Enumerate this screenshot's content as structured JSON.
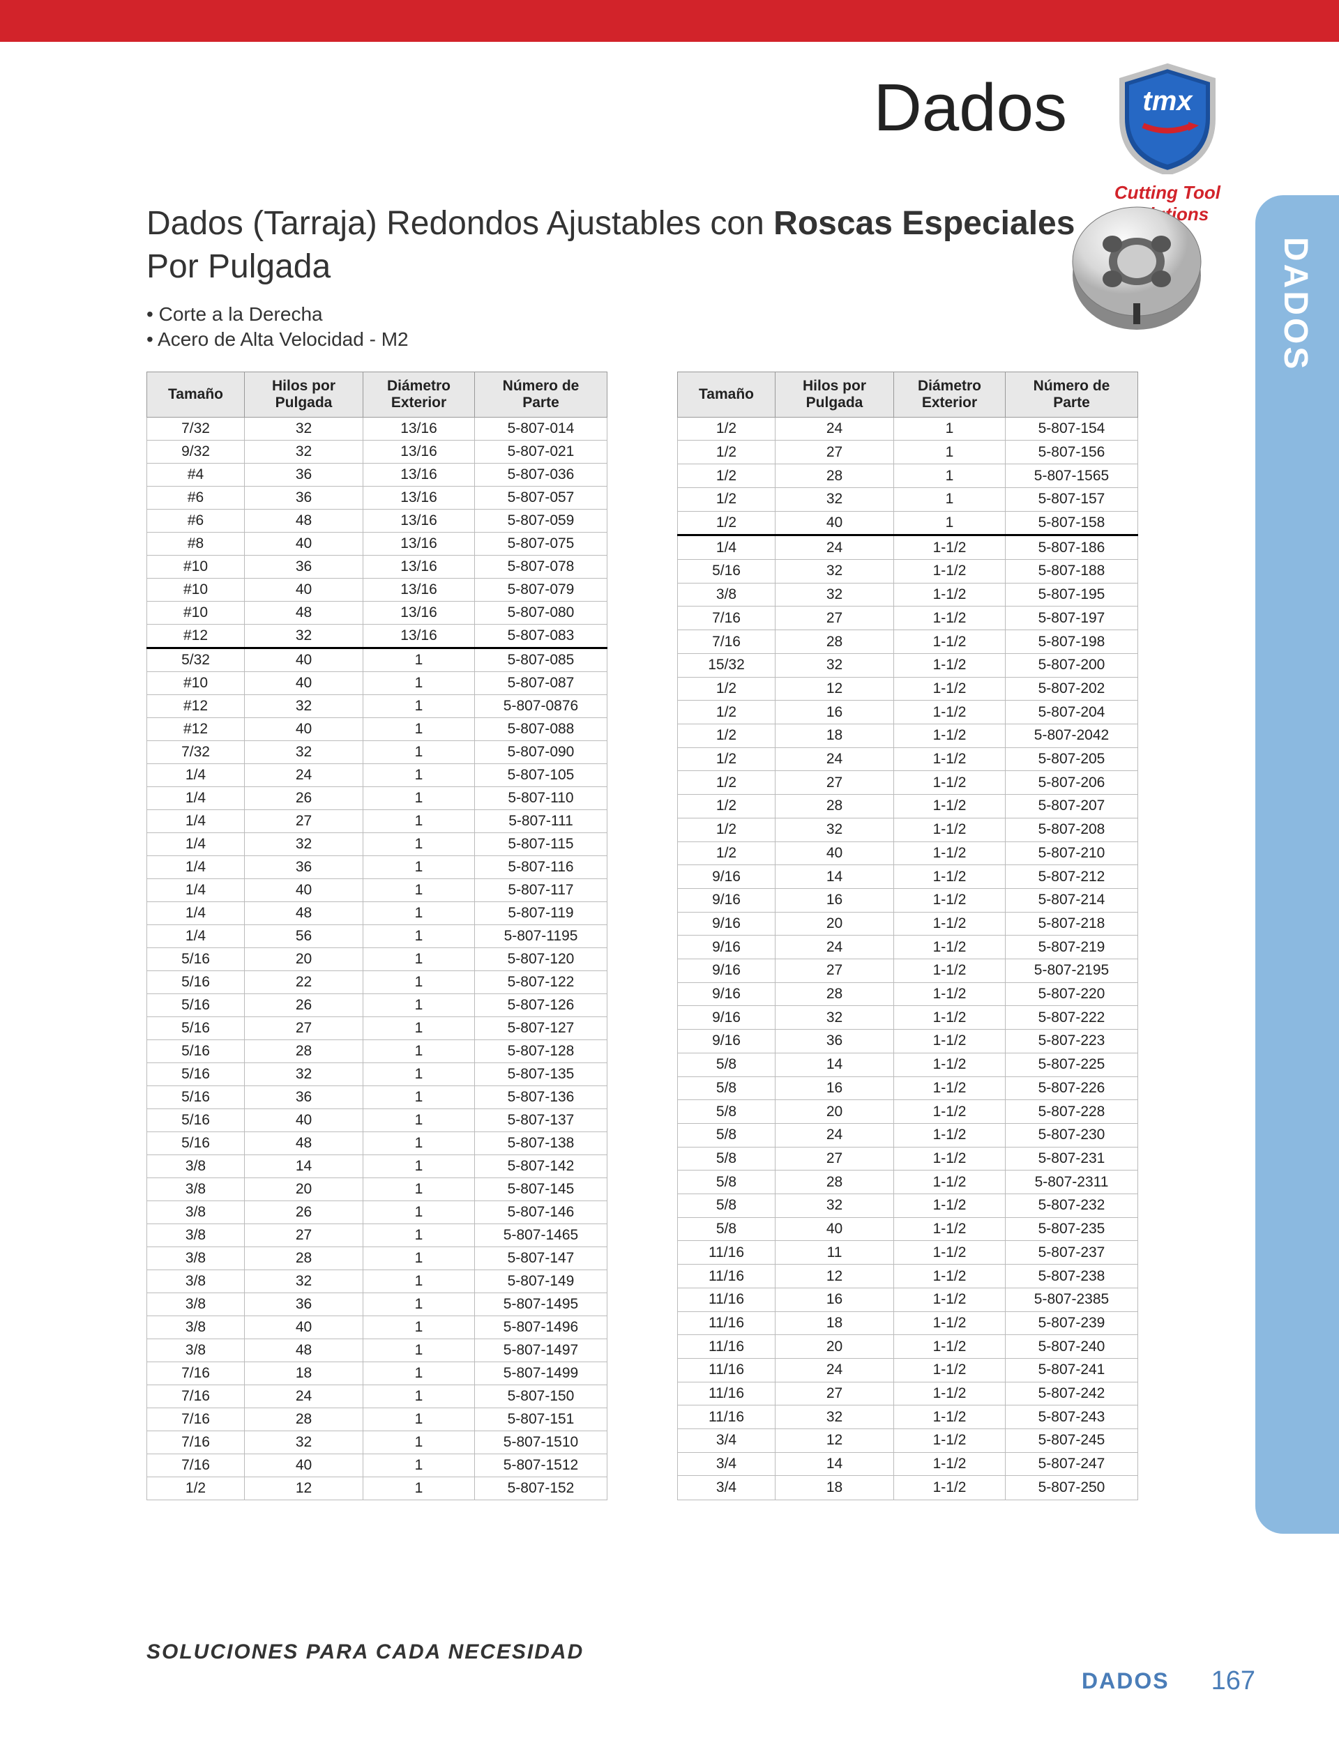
{
  "header": {
    "title": "Dados",
    "logo_tagline_1": "Cutting Tool",
    "logo_tagline_2": "Solutions",
    "logo_text": "tmx"
  },
  "sidetab": "DADOS",
  "subtitle_plain": "Dados (Tarraja) Redondos Ajustables con ",
  "subtitle_bold": "Roscas Especiales",
  "subtitle_line2": "Por Pulgada",
  "bullets": [
    "Corte a la Derecha",
    "Acero de Alta Velocidad - M2"
  ],
  "columns": [
    "Tamaño",
    "Hilos por Pulgada",
    "Diámetro Exterior",
    "Número de Parte"
  ],
  "col_widths": [
    "col0",
    "col1",
    "col2",
    "col3"
  ],
  "table_left": {
    "rows": [
      [
        "7/32",
        "32",
        "13/16",
        "5-807-014"
      ],
      [
        "9/32",
        "32",
        "13/16",
        "5-807-021"
      ],
      [
        "#4",
        "36",
        "13/16",
        "5-807-036"
      ],
      [
        "#6",
        "36",
        "13/16",
        "5-807-057"
      ],
      [
        "#6",
        "48",
        "13/16",
        "5-807-059"
      ],
      [
        "#8",
        "40",
        "13/16",
        "5-807-075"
      ],
      [
        "#10",
        "36",
        "13/16",
        "5-807-078"
      ],
      [
        "#10",
        "40",
        "13/16",
        "5-807-079"
      ],
      [
        "#10",
        "48",
        "13/16",
        "5-807-080"
      ],
      [
        "#12",
        "32",
        "13/16",
        "5-807-083"
      ]
    ],
    "rows2": [
      [
        "5/32",
        "40",
        "1",
        "5-807-085"
      ],
      [
        "#10",
        "40",
        "1",
        "5-807-087"
      ],
      [
        "#12",
        "32",
        "1",
        "5-807-0876"
      ],
      [
        "#12",
        "40",
        "1",
        "5-807-088"
      ],
      [
        "7/32",
        "32",
        "1",
        "5-807-090"
      ],
      [
        "1/4",
        "24",
        "1",
        "5-807-105"
      ],
      [
        "1/4",
        "26",
        "1",
        "5-807-110"
      ],
      [
        "1/4",
        "27",
        "1",
        "5-807-111"
      ],
      [
        "1/4",
        "32",
        "1",
        "5-807-115"
      ],
      [
        "1/4",
        "36",
        "1",
        "5-807-116"
      ],
      [
        "1/4",
        "40",
        "1",
        "5-807-117"
      ],
      [
        "1/4",
        "48",
        "1",
        "5-807-119"
      ],
      [
        "1/4",
        "56",
        "1",
        "5-807-1195"
      ],
      [
        "5/16",
        "20",
        "1",
        "5-807-120"
      ],
      [
        "5/16",
        "22",
        "1",
        "5-807-122"
      ],
      [
        "5/16",
        "26",
        "1",
        "5-807-126"
      ],
      [
        "5/16",
        "27",
        "1",
        "5-807-127"
      ],
      [
        "5/16",
        "28",
        "1",
        "5-807-128"
      ],
      [
        "5/16",
        "32",
        "1",
        "5-807-135"
      ],
      [
        "5/16",
        "36",
        "1",
        "5-807-136"
      ],
      [
        "5/16",
        "40",
        "1",
        "5-807-137"
      ],
      [
        "5/16",
        "48",
        "1",
        "5-807-138"
      ],
      [
        "3/8",
        "14",
        "1",
        "5-807-142"
      ],
      [
        "3/8",
        "20",
        "1",
        "5-807-145"
      ],
      [
        "3/8",
        "26",
        "1",
        "5-807-146"
      ],
      [
        "3/8",
        "27",
        "1",
        "5-807-1465"
      ],
      [
        "3/8",
        "28",
        "1",
        "5-807-147"
      ],
      [
        "3/8",
        "32",
        "1",
        "5-807-149"
      ],
      [
        "3/8",
        "36",
        "1",
        "5-807-1495"
      ],
      [
        "3/8",
        "40",
        "1",
        "5-807-1496"
      ],
      [
        "3/8",
        "48",
        "1",
        "5-807-1497"
      ],
      [
        "7/16",
        "18",
        "1",
        "5-807-1499"
      ],
      [
        "7/16",
        "24",
        "1",
        "5-807-150"
      ],
      [
        "7/16",
        "28",
        "1",
        "5-807-151"
      ],
      [
        "7/16",
        "32",
        "1",
        "5-807-1510"
      ],
      [
        "7/16",
        "40",
        "1",
        "5-807-1512"
      ],
      [
        "1/2",
        "12",
        "1",
        "5-807-152"
      ]
    ]
  },
  "table_right": {
    "rows": [
      [
        "1/2",
        "24",
        "1",
        "5-807-154"
      ],
      [
        "1/2",
        "27",
        "1",
        "5-807-156"
      ],
      [
        "1/2",
        "28",
        "1",
        "5-807-1565"
      ],
      [
        "1/2",
        "32",
        "1",
        "5-807-157"
      ],
      [
        "1/2",
        "40",
        "1",
        "5-807-158"
      ]
    ],
    "rows2": [
      [
        "1/4",
        "24",
        "1-1/2",
        "5-807-186"
      ],
      [
        "5/16",
        "32",
        "1-1/2",
        "5-807-188"
      ],
      [
        "3/8",
        "32",
        "1-1/2",
        "5-807-195"
      ],
      [
        "7/16",
        "27",
        "1-1/2",
        "5-807-197"
      ],
      [
        "7/16",
        "28",
        "1-1/2",
        "5-807-198"
      ],
      [
        "15/32",
        "32",
        "1-1/2",
        "5-807-200"
      ],
      [
        "1/2",
        "12",
        "1-1/2",
        "5-807-202"
      ],
      [
        "1/2",
        "16",
        "1-1/2",
        "5-807-204"
      ],
      [
        "1/2",
        "18",
        "1-1/2",
        "5-807-2042"
      ],
      [
        "1/2",
        "24",
        "1-1/2",
        "5-807-205"
      ],
      [
        "1/2",
        "27",
        "1-1/2",
        "5-807-206"
      ],
      [
        "1/2",
        "28",
        "1-1/2",
        "5-807-207"
      ],
      [
        "1/2",
        "32",
        "1-1/2",
        "5-807-208"
      ],
      [
        "1/2",
        "40",
        "1-1/2",
        "5-807-210"
      ],
      [
        "9/16",
        "14",
        "1-1/2",
        "5-807-212"
      ],
      [
        "9/16",
        "16",
        "1-1/2",
        "5-807-214"
      ],
      [
        "9/16",
        "20",
        "1-1/2",
        "5-807-218"
      ],
      [
        "9/16",
        "24",
        "1-1/2",
        "5-807-219"
      ],
      [
        "9/16",
        "27",
        "1-1/2",
        "5-807-2195"
      ],
      [
        "9/16",
        "28",
        "1-1/2",
        "5-807-220"
      ],
      [
        "9/16",
        "32",
        "1-1/2",
        "5-807-222"
      ],
      [
        "9/16",
        "36",
        "1-1/2",
        "5-807-223"
      ],
      [
        "5/8",
        "14",
        "1-1/2",
        "5-807-225"
      ],
      [
        "5/8",
        "16",
        "1-1/2",
        "5-807-226"
      ],
      [
        "5/8",
        "20",
        "1-1/2",
        "5-807-228"
      ],
      [
        "5/8",
        "24",
        "1-1/2",
        "5-807-230"
      ],
      [
        "5/8",
        "27",
        "1-1/2",
        "5-807-231"
      ],
      [
        "5/8",
        "28",
        "1-1/2",
        "5-807-2311"
      ],
      [
        "5/8",
        "32",
        "1-1/2",
        "5-807-232"
      ],
      [
        "5/8",
        "40",
        "1-1/2",
        "5-807-235"
      ],
      [
        "11/16",
        "11",
        "1-1/2",
        "5-807-237"
      ],
      [
        "11/16",
        "12",
        "1-1/2",
        "5-807-238"
      ],
      [
        "11/16",
        "16",
        "1-1/2",
        "5-807-2385"
      ],
      [
        "11/16",
        "18",
        "1-1/2",
        "5-807-239"
      ],
      [
        "11/16",
        "20",
        "1-1/2",
        "5-807-240"
      ],
      [
        "11/16",
        "24",
        "1-1/2",
        "5-807-241"
      ],
      [
        "11/16",
        "27",
        "1-1/2",
        "5-807-242"
      ],
      [
        "11/16",
        "32",
        "1-1/2",
        "5-807-243"
      ],
      [
        "3/4",
        "12",
        "1-1/2",
        "5-807-245"
      ],
      [
        "3/4",
        "14",
        "1-1/2",
        "5-807-247"
      ],
      [
        "3/4",
        "18",
        "1-1/2",
        "5-807-250"
      ]
    ]
  },
  "footer": {
    "slogan": "SOLUCIONES PARA CADA NECESIDAD",
    "section": "DADOS",
    "page": "167"
  },
  "colors": {
    "red": "#d2232a",
    "side_blue": "#8bb9e0",
    "footer_blue": "#4a7db8",
    "header_gray": "#e8e8e8",
    "border": "#bbb"
  }
}
